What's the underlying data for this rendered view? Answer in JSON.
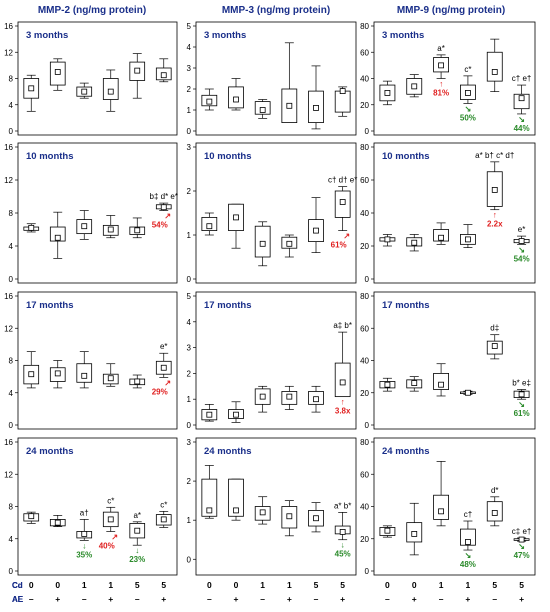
{
  "colors": {
    "title": "#1a2f8a",
    "increase": "#e02020",
    "decrease": "#2a8a2a"
  },
  "group_axis": {
    "cd_label": "Cd",
    "ae_label": "AE",
    "cd_values": [
      "0",
      "0",
      "1",
      "1",
      "5",
      "5"
    ],
    "ae_values": [
      "–",
      "+",
      "–",
      "+",
      "–",
      "+"
    ]
  },
  "chart_data": [
    {
      "type": "box",
      "title": "MMP-2 (ng/mg protein)",
      "ylim": [
        0,
        16
      ],
      "yticks": [
        0,
        4,
        8,
        12,
        16
      ],
      "panels": [
        {
          "label": "3 months",
          "boxes": [
            [
              3,
              5,
              6.5,
              8,
              8.5
            ],
            [
              6.2,
              7,
              9,
              10.5,
              11
            ],
            [
              5,
              5.3,
              6,
              6.7,
              7.3
            ],
            [
              3,
              4.8,
              6,
              8,
              9.3
            ],
            [
              5,
              7.7,
              9.2,
              10.5,
              11.8
            ],
            [
              7.5,
              7.8,
              8.5,
              9.6,
              11
            ]
          ],
          "annotations": [],
          "changes": []
        },
        {
          "label": "10 months",
          "boxes": [
            [
              5.7,
              5.9,
              6.2,
              6.3,
              6.7
            ],
            [
              2.5,
              4.6,
              5,
              6.3,
              8.1
            ],
            [
              4.8,
              5.5,
              6.4,
              7.2,
              8.3
            ],
            [
              5,
              5.3,
              6,
              6.5,
              7.7
            ],
            [
              5,
              5.4,
              5.9,
              6.3,
              7.4
            ],
            [
              8.3,
              8.5,
              8.7,
              9,
              9.2
            ]
          ],
          "annotations": [
            {
              "box": 5,
              "text": "b‡ d* e*"
            }
          ],
          "changes": [
            {
              "box": 5,
              "text": "54%",
              "dir": "up",
              "arrow": "↗"
            }
          ]
        },
        {
          "label": "17 months",
          "boxes": [
            [
              4.6,
              5.1,
              6.3,
              7.4,
              9.1
            ],
            [
              4.6,
              5.4,
              6.4,
              7.1,
              8
            ],
            [
              4.6,
              5.3,
              6.1,
              7.6,
              9.1
            ],
            [
              4.8,
              5.1,
              5.8,
              6.3,
              7.6
            ],
            [
              4.6,
              5,
              5.4,
              5.7,
              6.2
            ],
            [
              5.9,
              6.3,
              7.1,
              7.9,
              8.9
            ]
          ],
          "annotations": [
            {
              "box": 5,
              "text": "e*"
            }
          ],
          "changes": [
            {
              "box": 5,
              "text": "29%",
              "dir": "up",
              "arrow": "↗"
            }
          ]
        },
        {
          "label": "24 months",
          "boxes": [
            [
              5.9,
              6.2,
              6.8,
              7.1,
              7.3
            ],
            [
              5.5,
              5.6,
              6,
              6.4,
              6.9
            ],
            [
              3.8,
              4.1,
              4.6,
              4.9,
              6.4
            ],
            [
              4.9,
              5.5,
              6.4,
              7.3,
              7.9
            ],
            [
              3.2,
              4.1,
              5,
              5.9,
              6.1
            ],
            [
              5.4,
              5.7,
              6.4,
              7,
              7.4
            ]
          ],
          "annotations": [
            {
              "box": 2,
              "text": "a†"
            },
            {
              "box": 3,
              "text": "c*"
            },
            {
              "box": 4,
              "text": "a*"
            },
            {
              "box": 5,
              "text": "c*"
            }
          ],
          "changes": [
            {
              "box": 2,
              "text": "35%",
              "dir": "down",
              "arrow": "↓"
            },
            {
              "box": 3,
              "text": "40%",
              "dir": "up",
              "arrow": "↗"
            },
            {
              "box": 4,
              "text": "23%",
              "dir": "down",
              "arrow": "↓"
            }
          ]
        }
      ]
    },
    {
      "type": "box",
      "title": "MMP-3 (ng/mg protein)",
      "ylim": [
        0,
        5
      ],
      "yticks": [
        0,
        1,
        2,
        3,
        4,
        5
      ],
      "panel_ylim": [
        null,
        [
          0,
          3
        ],
        null,
        [
          -0.3,
          3
        ]
      ],
      "panels": [
        {
          "label": "3 months",
          "boxes": [
            [
              1,
              1.2,
              1.4,
              1.7,
              2
            ],
            [
              1,
              1.1,
              1.5,
              2.1,
              2.5
            ],
            [
              0.6,
              0.8,
              1,
              1.4,
              1.5
            ],
            [
              0.4,
              0.4,
              1.2,
              2,
              4.2
            ],
            [
              0.1,
              0.4,
              1.1,
              1.9,
              3.1
            ],
            [
              0.7,
              0.9,
              1.9,
              1.9,
              2.1
            ]
          ],
          "annotations": [],
          "changes": []
        },
        {
          "label": "10 months",
          "boxes": [
            [
              1,
              1.1,
              1.2,
              1.4,
              1.5
            ],
            [
              0.7,
              1.1,
              1.4,
              1.7,
              1.7
            ],
            [
              0.3,
              0.5,
              0.8,
              1.2,
              1.3
            ],
            [
              0.5,
              0.7,
              0.8,
              0.95,
              1
            ],
            [
              0.6,
              0.85,
              1.1,
              1.35,
              1.85
            ],
            [
              1.1,
              1.4,
              1.75,
              2,
              2.1
            ]
          ],
          "annotations": [
            {
              "box": 5,
              "text": "c† d† e*"
            }
          ],
          "changes": [
            {
              "box": 5,
              "text": "61%",
              "dir": "up",
              "arrow": "↗"
            }
          ]
        },
        {
          "label": "17 months",
          "boxes": [
            [
              0.15,
              0.2,
              0.4,
              0.6,
              0.8
            ],
            [
              0.1,
              0.25,
              0.4,
              0.6,
              0.9
            ],
            [
              0.5,
              0.8,
              1.1,
              1.4,
              1.5
            ],
            [
              0.6,
              0.8,
              1.1,
              1.3,
              1.5
            ],
            [
              0.5,
              0.8,
              1,
              1.3,
              1.5
            ],
            [
              1.1,
              1.1,
              1.65,
              2.4,
              3.6
            ]
          ],
          "annotations": [
            {
              "box": 5,
              "text": "a‡ b*"
            }
          ],
          "changes": [
            {
              "box": 5,
              "text": "3.8x",
              "dir": "up",
              "arrow": "↑"
            }
          ]
        },
        {
          "label": "24 months",
          "boxes": [
            [
              1.05,
              1.1,
              1.25,
              2.05,
              2.4
            ],
            [
              1,
              1.1,
              1.25,
              2.05,
              2.05
            ],
            [
              0.9,
              1,
              1.2,
              1.35,
              1.6
            ],
            [
              0.6,
              0.8,
              1.1,
              1.35,
              1.5
            ],
            [
              0.7,
              0.85,
              1.05,
              1.25,
              1.45
            ],
            [
              0.5,
              0.65,
              0.7,
              0.85,
              1.2
            ]
          ],
          "annotations": [
            {
              "box": 5,
              "text": "a* b*"
            }
          ],
          "changes": [
            {
              "box": 5,
              "text": "45%",
              "dir": "down",
              "arrow": "↓"
            }
          ]
        }
      ]
    },
    {
      "type": "box",
      "title": "MMP-9 (ng/mg protein)",
      "ylim": [
        0,
        80
      ],
      "yticks": [
        0,
        20,
        40,
        60,
        80
      ],
      "panels": [
        {
          "label": "3 months",
          "boxes": [
            [
              20,
              23,
              29,
              35,
              38
            ],
            [
              26,
              28,
              34,
              40,
              43
            ],
            [
              40,
              45,
              50,
              56,
              58
            ],
            [
              21,
              24,
              29,
              35,
              42
            ],
            [
              30,
              38,
              45,
              60,
              70
            ],
            [
              13,
              17,
              25,
              28,
              35
            ]
          ],
          "annotations": [
            {
              "box": 2,
              "text": "a*"
            },
            {
              "box": 3,
              "text": "c*"
            },
            {
              "box": 5,
              "text": "c† e†"
            }
          ],
          "changes": [
            {
              "box": 2,
              "text": "81%",
              "dir": "up",
              "arrow": "↑"
            },
            {
              "box": 3,
              "text": "50%",
              "dir": "down",
              "arrow": "↘"
            },
            {
              "box": 5,
              "text": "44%",
              "dir": "down",
              "arrow": "↘"
            }
          ]
        },
        {
          "label": "10 months",
          "boxes": [
            [
              20,
              23,
              24,
              25,
              27
            ],
            [
              17,
              20,
              22,
              25,
              27
            ],
            [
              21,
              23,
              25,
              30,
              34
            ],
            [
              19,
              21,
              24,
              27,
              33
            ],
            [
              42,
              44,
              54,
              65,
              71
            ],
            [
              21,
              22,
              23,
              24,
              26
            ]
          ],
          "annotations": [
            {
              "box": 4,
              "text": "a* b† c* d†"
            },
            {
              "box": 5,
              "text": "e*"
            }
          ],
          "changes": [
            {
              "box": 4,
              "text": "2.2x",
              "dir": "up",
              "arrow": "↑"
            },
            {
              "box": 5,
              "text": "54%",
              "dir": "down",
              "arrow": "↘"
            }
          ]
        },
        {
          "label": "17 months",
          "boxes": [
            [
              21,
              23,
              25,
              27,
              29
            ],
            [
              21,
              23,
              26,
              28,
              30
            ],
            [
              18,
              22,
              25,
              32,
              38
            ],
            [
              19,
              19.5,
              20,
              20.5,
              21
            ],
            [
              41,
              44,
              49,
              52,
              56
            ],
            [
              16,
              17,
              19,
              21,
              22
            ]
          ],
          "annotations": [
            {
              "box": 4,
              "text": "d‡"
            },
            {
              "box": 5,
              "text": "b* e‡"
            }
          ],
          "changes": [
            {
              "box": 5,
              "text": "61%",
              "dir": "down",
              "arrow": "↘"
            }
          ]
        },
        {
          "label": "24 months",
          "boxes": [
            [
              21,
              22,
              25,
              27,
              28
            ],
            [
              10,
              18,
              23,
              30,
              42
            ],
            [
              28,
              32,
              37,
              47,
              68
            ],
            [
              13,
              16,
              18,
              26,
              31
            ],
            [
              28,
              31,
              36,
              43,
              46
            ],
            [
              18.5,
              19,
              19.5,
              20,
              20.5
            ]
          ],
          "annotations": [
            {
              "box": 3,
              "text": "c†"
            },
            {
              "box": 4,
              "text": "d*"
            },
            {
              "box": 5,
              "text": "c‡ e†"
            }
          ],
          "changes": [
            {
              "box": 3,
              "text": "48%",
              "dir": "down",
              "arrow": "↘"
            },
            {
              "box": 5,
              "text": "47%",
              "dir": "down",
              "arrow": "↘"
            }
          ]
        }
      ]
    }
  ]
}
